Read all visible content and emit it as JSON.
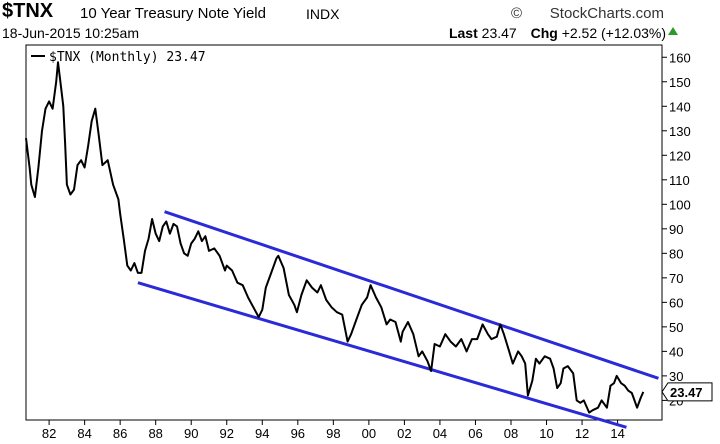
{
  "header": {
    "ticker": "$TNX",
    "description": "10 Year Treasury Note Yield",
    "exchange": "INDX",
    "brand": "StockCharts.com",
    "brand_icon": "copyright-icon",
    "date": "18-Jun-2015 10:25am",
    "last_label": "Last",
    "last_value": "23.47",
    "chg_label": "Chg",
    "chg_value": "+2.52 (+12.03%)",
    "trend_icon": "up-triangle-icon",
    "trend_color": "#2e9a2e"
  },
  "legend": {
    "label": "$TNX (Monthly) 23.47"
  },
  "chart_data": {
    "type": "line",
    "series": [
      {
        "name": "$TNX (Monthly)",
        "color": "#000000",
        "points": [
          [
            1980.7,
            127
          ],
          [
            1980.9,
            115
          ],
          [
            1981.0,
            108
          ],
          [
            1981.2,
            103
          ],
          [
            1981.4,
            115
          ],
          [
            1981.6,
            130
          ],
          [
            1981.8,
            139
          ],
          [
            1982.0,
            142
          ],
          [
            1982.2,
            139
          ],
          [
            1982.4,
            150
          ],
          [
            1982.5,
            158
          ],
          [
            1982.6,
            152
          ],
          [
            1982.8,
            140
          ],
          [
            1982.9,
            125
          ],
          [
            1983.0,
            108
          ],
          [
            1983.2,
            104
          ],
          [
            1983.4,
            106
          ],
          [
            1983.6,
            116
          ],
          [
            1983.8,
            118
          ],
          [
            1984.0,
            115
          ],
          [
            1984.2,
            124
          ],
          [
            1984.4,
            134
          ],
          [
            1984.6,
            139
          ],
          [
            1984.8,
            128
          ],
          [
            1985.0,
            116
          ],
          [
            1985.3,
            118
          ],
          [
            1985.6,
            108
          ],
          [
            1985.9,
            102
          ],
          [
            1986.0,
            96
          ],
          [
            1986.2,
            86
          ],
          [
            1986.4,
            75
          ],
          [
            1986.6,
            73
          ],
          [
            1986.8,
            76
          ],
          [
            1987.0,
            72
          ],
          [
            1987.2,
            72
          ],
          [
            1987.4,
            81
          ],
          [
            1987.6,
            86
          ],
          [
            1987.8,
            94
          ],
          [
            1988.0,
            88
          ],
          [
            1988.2,
            85
          ],
          [
            1988.4,
            91
          ],
          [
            1988.6,
            93
          ],
          [
            1988.8,
            88
          ],
          [
            1989.0,
            92
          ],
          [
            1989.2,
            91
          ],
          [
            1989.4,
            84
          ],
          [
            1989.6,
            80
          ],
          [
            1989.8,
            79
          ],
          [
            1990.0,
            84
          ],
          [
            1990.2,
            86
          ],
          [
            1990.4,
            89
          ],
          [
            1990.6,
            85
          ],
          [
            1990.8,
            87
          ],
          [
            1991.0,
            81
          ],
          [
            1991.3,
            82
          ],
          [
            1991.6,
            79
          ],
          [
            1991.9,
            73
          ],
          [
            1992.0,
            75
          ],
          [
            1992.3,
            73
          ],
          [
            1992.6,
            68
          ],
          [
            1992.9,
            67
          ],
          [
            1993.2,
            62
          ],
          [
            1993.5,
            58
          ],
          [
            1993.8,
            54
          ],
          [
            1994.0,
            57
          ],
          [
            1994.2,
            66
          ],
          [
            1994.5,
            72
          ],
          [
            1994.8,
            78
          ],
          [
            1994.9,
            79
          ],
          [
            1995.2,
            74
          ],
          [
            1995.5,
            63
          ],
          [
            1995.8,
            59
          ],
          [
            1995.95,
            56
          ],
          [
            1996.2,
            63
          ],
          [
            1996.5,
            69
          ],
          [
            1996.8,
            66
          ],
          [
            1997.1,
            64
          ],
          [
            1997.3,
            67
          ],
          [
            1997.6,
            61
          ],
          [
            1997.9,
            58
          ],
          [
            1998.2,
            56
          ],
          [
            1998.5,
            55
          ],
          [
            1998.8,
            44
          ],
          [
            1999.0,
            47
          ],
          [
            1999.3,
            53
          ],
          [
            1999.6,
            59
          ],
          [
            1999.9,
            62
          ],
          [
            2000.1,
            67
          ],
          [
            2000.4,
            62
          ],
          [
            2000.7,
            58
          ],
          [
            2001.0,
            51
          ],
          [
            2001.2,
            53
          ],
          [
            2001.5,
            52
          ],
          [
            2001.8,
            44
          ],
          [
            2001.9,
            48
          ],
          [
            2002.2,
            52
          ],
          [
            2002.5,
            47
          ],
          [
            2002.8,
            38
          ],
          [
            2003.0,
            40
          ],
          [
            2003.3,
            36
          ],
          [
            2003.5,
            32
          ],
          [
            2003.7,
            43
          ],
          [
            2004.0,
            42
          ],
          [
            2004.3,
            47
          ],
          [
            2004.6,
            44
          ],
          [
            2004.9,
            42
          ],
          [
            2005.2,
            45
          ],
          [
            2005.5,
            40
          ],
          [
            2005.8,
            45
          ],
          [
            2006.1,
            45
          ],
          [
            2006.4,
            51
          ],
          [
            2006.7,
            47
          ],
          [
            2006.9,
            45
          ],
          [
            2007.2,
            46
          ],
          [
            2007.4,
            51
          ],
          [
            2007.6,
            47
          ],
          [
            2007.9,
            40
          ],
          [
            2008.1,
            35
          ],
          [
            2008.4,
            40
          ],
          [
            2008.6,
            38
          ],
          [
            2008.8,
            35
          ],
          [
            2008.95,
            22
          ],
          [
            2009.2,
            28
          ],
          [
            2009.4,
            37
          ],
          [
            2009.6,
            35
          ],
          [
            2009.9,
            38
          ],
          [
            2010.2,
            37
          ],
          [
            2010.4,
            33
          ],
          [
            2010.6,
            25
          ],
          [
            2010.8,
            27
          ],
          [
            2010.95,
            33
          ],
          [
            2011.2,
            34
          ],
          [
            2011.5,
            31
          ],
          [
            2011.7,
            20
          ],
          [
            2011.9,
            19
          ],
          [
            2012.1,
            20
          ],
          [
            2012.4,
            15
          ],
          [
            2012.6,
            16
          ],
          [
            2012.9,
            17
          ],
          [
            2013.1,
            20
          ],
          [
            2013.4,
            17
          ],
          [
            2013.6,
            26
          ],
          [
            2013.8,
            27
          ],
          [
            2013.95,
            30
          ],
          [
            2014.2,
            27
          ],
          [
            2014.4,
            26
          ],
          [
            2014.6,
            24
          ],
          [
            2014.8,
            23
          ],
          [
            2014.9,
            21
          ],
          [
            2015.1,
            17
          ],
          [
            2015.3,
            21
          ],
          [
            2015.45,
            23.47
          ]
        ]
      }
    ],
    "overlays": [
      {
        "name": "upper-channel-line",
        "color": "#2a2ad8",
        "from": [
          1988.5,
          97
        ],
        "to": [
          2016.3,
          29
        ]
      },
      {
        "name": "lower-channel-line",
        "color": "#2a2ad8",
        "from": [
          1987.0,
          68
        ],
        "to": [
          2014.5,
          9
        ]
      }
    ],
    "x_ticks": [
      {
        "value": 1982,
        "label": "82"
      },
      {
        "value": 1984,
        "label": "84"
      },
      {
        "value": 1986,
        "label": "86"
      },
      {
        "value": 1988,
        "label": "88"
      },
      {
        "value": 1990,
        "label": "90"
      },
      {
        "value": 1992,
        "label": "92"
      },
      {
        "value": 1994,
        "label": "94"
      },
      {
        "value": 1996,
        "label": "96"
      },
      {
        "value": 1998,
        "label": "98"
      },
      {
        "value": 2000,
        "label": "00"
      },
      {
        "value": 2002,
        "label": "02"
      },
      {
        "value": 2004,
        "label": "04"
      },
      {
        "value": 2006,
        "label": "06"
      },
      {
        "value": 2008,
        "label": "08"
      },
      {
        "value": 2010,
        "label": "10"
      },
      {
        "value": 2012,
        "label": "12"
      },
      {
        "value": 2014,
        "label": "14"
      }
    ],
    "y_ticks": [
      {
        "value": 20,
        "label": "20"
      },
      {
        "value": 30,
        "label": "30"
      },
      {
        "value": 40,
        "label": "40"
      },
      {
        "value": 50,
        "label": "50"
      },
      {
        "value": 60,
        "label": "60"
      },
      {
        "value": 70,
        "label": "70"
      },
      {
        "value": 80,
        "label": "80"
      },
      {
        "value": 90,
        "label": "90"
      },
      {
        "value": 100,
        "label": "100"
      },
      {
        "value": 110,
        "label": "110"
      },
      {
        "value": 120,
        "label": "120"
      },
      {
        "value": 130,
        "label": "130"
      },
      {
        "value": 140,
        "label": "140"
      },
      {
        "value": 150,
        "label": "150"
      },
      {
        "value": 160,
        "label": "160"
      }
    ],
    "xlim": [
      1980.7,
      2016.5
    ],
    "ylim": [
      12,
      165
    ],
    "last_value_label": "23.47",
    "grid": false,
    "y_axis_side": "right",
    "legend_position": "top-left"
  }
}
